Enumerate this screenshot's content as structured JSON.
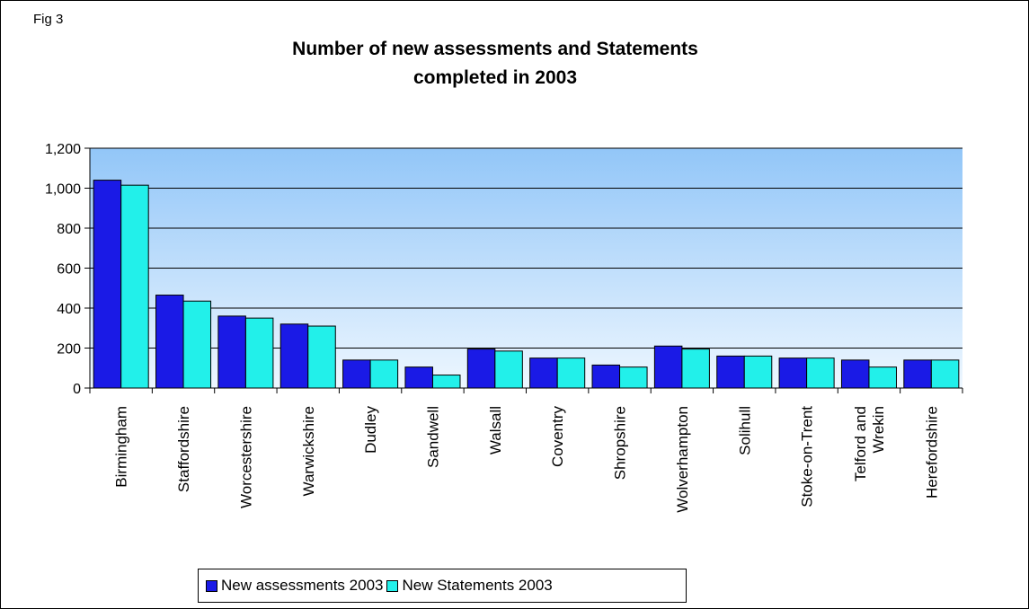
{
  "fig_label": "Fig 3",
  "title_line1": "Number of new assessments and Statements",
  "title_line2": "completed  in 2003",
  "colors": {
    "series1": "#1a1ae6",
    "series2": "#22f0ea",
    "plot_top": "#92c6f8",
    "plot_bottom": "#eef7ff"
  },
  "chart_data": {
    "type": "bar",
    "title": "Number of new assessments and Statements completed  in 2003",
    "categories": [
      "Birmingham",
      "Staffordshire",
      "Worcestershire",
      "Warwickshire",
      "Dudley",
      "Sandwell",
      "Walsall",
      "Coventry",
      "Shropshire",
      "Wolverhampton",
      "Solihull",
      "Stoke-on-Trent",
      "Telford and Wrekin",
      "Herefordshire"
    ],
    "category_lines": [
      [
        "Birmingham"
      ],
      [
        "Staffordshire"
      ],
      [
        "Worcestershire"
      ],
      [
        "Warwickshire"
      ],
      [
        "Dudley"
      ],
      [
        "Sandwell"
      ],
      [
        "Walsall"
      ],
      [
        "Coventry"
      ],
      [
        "Shropshire"
      ],
      [
        "Wolverhampton"
      ],
      [
        "Solihull"
      ],
      [
        "Stoke-on-Trent"
      ],
      [
        "Telford and",
        "Wrekin"
      ],
      [
        "Herefordshire"
      ]
    ],
    "series": [
      {
        "name": "New assessments 2003",
        "values": [
          1040,
          465,
          360,
          320,
          140,
          105,
          195,
          150,
          115,
          210,
          160,
          150,
          140,
          140
        ]
      },
      {
        "name": "New Statements 2003",
        "values": [
          1015,
          435,
          350,
          310,
          140,
          65,
          185,
          150,
          105,
          195,
          160,
          150,
          105,
          140
        ]
      }
    ],
    "ylim": [
      0,
      1200
    ],
    "yticks": [
      0,
      200,
      400,
      600,
      800,
      1000,
      1200
    ],
    "ytick_labels": [
      "0",
      "200",
      "400",
      "600",
      "800",
      "1,000",
      "1,200"
    ],
    "grid": true,
    "legend_position": "bottom"
  }
}
